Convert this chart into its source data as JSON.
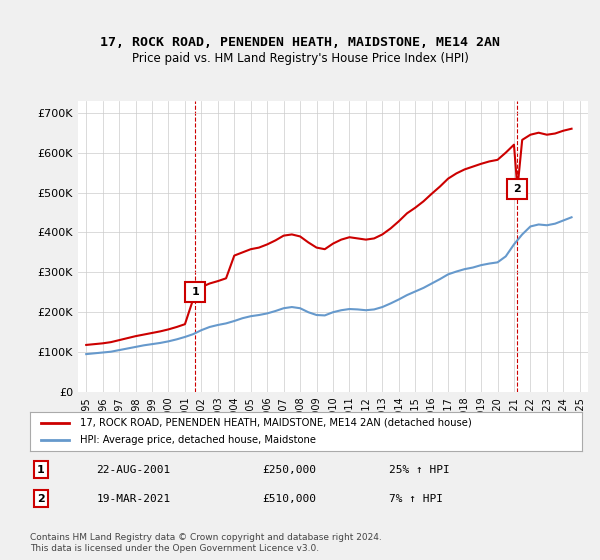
{
  "title": "17, ROCK ROAD, PENENDEN HEATH, MAIDSTONE, ME14 2AN",
  "subtitle": "Price paid vs. HM Land Registry's House Price Index (HPI)",
  "legend_line1": "17, ROCK ROAD, PENENDEN HEATH, MAIDSTONE, ME14 2AN (detached house)",
  "legend_line2": "HPI: Average price, detached house, Maidstone",
  "footnote": "Contains HM Land Registry data © Crown copyright and database right 2024.\nThis data is licensed under the Open Government Licence v3.0.",
  "marker1_label": "1",
  "marker1_date": "22-AUG-2001",
  "marker1_price": "£250,000",
  "marker1_hpi": "25% ↑ HPI",
  "marker1_year": 2001.64,
  "marker1_value": 250000,
  "marker2_label": "2",
  "marker2_date": "19-MAR-2021",
  "marker2_price": "£510,000",
  "marker2_hpi": "7% ↑ HPI",
  "marker2_year": 2021.21,
  "marker2_value": 510000,
  "red_color": "#cc0000",
  "blue_color": "#6699cc",
  "background_color": "#f0f0f0",
  "plot_bg_color": "#ffffff",
  "grid_color": "#cccccc",
  "ylim": [
    0,
    730000
  ],
  "yticks": [
    0,
    100000,
    200000,
    300000,
    400000,
    500000,
    600000,
    700000
  ],
  "hpi_years": [
    1995,
    1995.5,
    1996,
    1996.5,
    1997,
    1997.5,
    1998,
    1998.5,
    1999,
    1999.5,
    2000,
    2000.5,
    2001,
    2001.5,
    2002,
    2002.5,
    2003,
    2003.5,
    2004,
    2004.5,
    2005,
    2005.5,
    2006,
    2006.5,
    2007,
    2007.5,
    2008,
    2008.5,
    2009,
    2009.5,
    2010,
    2010.5,
    2011,
    2011.5,
    2012,
    2012.5,
    2013,
    2013.5,
    2014,
    2014.5,
    2015,
    2015.5,
    2016,
    2016.5,
    2017,
    2017.5,
    2018,
    2018.5,
    2019,
    2019.5,
    2020,
    2020.5,
    2021,
    2021.5,
    2022,
    2022.5,
    2023,
    2023.5,
    2024,
    2024.5
  ],
  "hpi_values": [
    95000,
    97000,
    99000,
    101000,
    105000,
    109000,
    113000,
    117000,
    120000,
    123000,
    127000,
    132000,
    138000,
    145000,
    155000,
    163000,
    168000,
    172000,
    178000,
    185000,
    190000,
    193000,
    197000,
    203000,
    210000,
    213000,
    210000,
    200000,
    193000,
    192000,
    200000,
    205000,
    208000,
    207000,
    205000,
    207000,
    213000,
    222000,
    232000,
    243000,
    252000,
    261000,
    272000,
    283000,
    295000,
    302000,
    308000,
    312000,
    318000,
    322000,
    325000,
    340000,
    370000,
    395000,
    415000,
    420000,
    418000,
    422000,
    430000,
    438000
  ],
  "red_years": [
    1995,
    1995.5,
    1996,
    1996.5,
    1997,
    1997.5,
    1998,
    1998.5,
    1999,
    1999.5,
    2000,
    2000.5,
    2001,
    2001.64,
    2002,
    2002.5,
    2003,
    2003.5,
    2004,
    2004.5,
    2005,
    2005.5,
    2006,
    2006.5,
    2007,
    2007.5,
    2008,
    2008.5,
    2009,
    2009.5,
    2010,
    2010.5,
    2011,
    2011.5,
    2012,
    2012.5,
    2013,
    2013.5,
    2014,
    2014.5,
    2015,
    2015.5,
    2016,
    2016.5,
    2017,
    2017.5,
    2018,
    2018.5,
    2019,
    2019.5,
    2020,
    2020.5,
    2021,
    2021.21,
    2021.5,
    2022,
    2022.5,
    2023,
    2023.5,
    2024,
    2024.5
  ],
  "red_values": [
    118000,
    120000,
    122000,
    125000,
    130000,
    135000,
    140000,
    144000,
    148000,
    152000,
    157000,
    163000,
    170000,
    250000,
    263000,
    272000,
    278000,
    285000,
    342000,
    350000,
    358000,
    362000,
    370000,
    380000,
    392000,
    395000,
    390000,
    375000,
    362000,
    358000,
    372000,
    382000,
    388000,
    385000,
    382000,
    385000,
    395000,
    410000,
    428000,
    448000,
    462000,
    478000,
    497000,
    515000,
    535000,
    548000,
    558000,
    565000,
    572000,
    578000,
    582000,
    600000,
    620000,
    510000,
    632000,
    645000,
    650000,
    645000,
    648000,
    655000,
    660000
  ],
  "xtick_years": [
    1995,
    1996,
    1997,
    1998,
    1999,
    2000,
    2001,
    2002,
    2003,
    2004,
    2005,
    2006,
    2007,
    2008,
    2009,
    2010,
    2011,
    2012,
    2013,
    2014,
    2015,
    2016,
    2017,
    2018,
    2019,
    2020,
    2021,
    2022,
    2023,
    2024,
    2025
  ]
}
